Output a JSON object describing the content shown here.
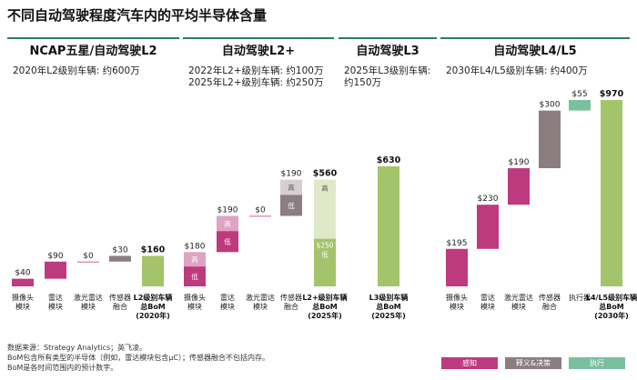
{
  "title": "不同自动驾驶程度汽车内的平均半导体含量",
  "colors": {
    "sense": "#be3a7e",
    "sense_light": "#dfa3c3",
    "decide": "#8c7d80",
    "exec": "#79c0a1",
    "total": "#a3c46b",
    "total_light": "#dfe8c9",
    "divider": "#2e7d5b"
  },
  "sections": [
    {
      "title": "NCAP五星/自动驾驶L2",
      "notes": [
        "2020年L2级别车辆: 约600万"
      ]
    },
    {
      "title": "自动驾驶L2+",
      "notes": [
        "2022年L2+级别车辆: 约100万",
        "2025年L2+级别车辆: 约250万"
      ]
    },
    {
      "title": "自动驾驶L3",
      "notes": [
        "2025年L3级别车辆:",
        "约150万"
      ]
    },
    {
      "title": "自动驾驶L4/L5",
      "notes": [
        "2030年L4/L5级别车辆: 约400万"
      ]
    }
  ],
  "chart_data": [
    {
      "type": "bar",
      "subtype": "waterfall",
      "section": "NCAP五星/自动驾驶L2",
      "categories": [
        [
          "摄像头",
          "模块"
        ],
        [
          "雷达",
          "模块"
        ],
        [
          "激光雷达",
          "模块"
        ],
        [
          "传感器",
          "融合"
        ],
        [
          "L2级别车辆",
          "总BoM",
          "(2020年)"
        ]
      ],
      "values": [
        40,
        90,
        0,
        30,
        160
      ],
      "value_labels": [
        "$40",
        "$90",
        "$0",
        "$30",
        "$160"
      ],
      "roles": [
        "sense",
        "sense",
        "sense",
        "decide",
        "total"
      ]
    },
    {
      "type": "bar",
      "subtype": "waterfall",
      "section": "自动驾驶L2+",
      "categories": [
        [
          "摄像头",
          "模块"
        ],
        [
          "雷达",
          "模块"
        ],
        [
          "激光雷达",
          "模块"
        ],
        [
          "传感器",
          "融合"
        ],
        [
          "L2+级别车辆",
          "总BoM",
          "(2025年)"
        ]
      ],
      "values": [
        180,
        190,
        0,
        190,
        560
      ],
      "value_labels": [
        "$180",
        "$190",
        "$0",
        "$190",
        "$560"
      ],
      "segment_labels": {
        "high": "高",
        "low": "低"
      },
      "total_low_label": "$250",
      "total_low_value": 250,
      "roles": [
        "sense",
        "sense",
        "sense",
        "decide",
        "total"
      ]
    },
    {
      "type": "bar",
      "subtype": "waterfall",
      "section": "自动驾驶L3",
      "categories": [
        [
          "L3级别车辆",
          "总BoM",
          "(2025年)"
        ]
      ],
      "values": [
        630
      ],
      "value_labels": [
        "$630"
      ],
      "roles": [
        "total"
      ]
    },
    {
      "type": "bar",
      "subtype": "waterfall",
      "section": "自动驾驶L4/L5",
      "categories": [
        [
          "摄像头",
          "模块"
        ],
        [
          "雷达",
          "模块"
        ],
        [
          "激光雷达",
          "模块"
        ],
        [
          "传感器",
          "融合"
        ],
        [
          "执行器"
        ],
        [
          "L4/L5级别车辆",
          "总BoM",
          "(2030年)"
        ]
      ],
      "values": [
        195,
        230,
        190,
        300,
        55,
        970
      ],
      "value_labels": [
        "$195",
        "$230",
        "$190",
        "$300",
        "$55",
        "$970"
      ],
      "roles": [
        "sense",
        "sense",
        "sense",
        "decide",
        "exec",
        "total"
      ]
    }
  ],
  "legend": [
    {
      "label": "感知",
      "color": "#be3a7e"
    },
    {
      "label": "释义&决策",
      "color": "#8c7d80"
    },
    {
      "label": "执行",
      "color": "#79c0a1"
    }
  ],
  "footnotes": [
    "数据来源：Strategy Analytics；英飞凌。",
    "BoM包含所有类型的半导体（例如，雷达模块包含µC）；传感器融合不包括内存。",
    "BoM是各时间范围内的预计数字。"
  ]
}
